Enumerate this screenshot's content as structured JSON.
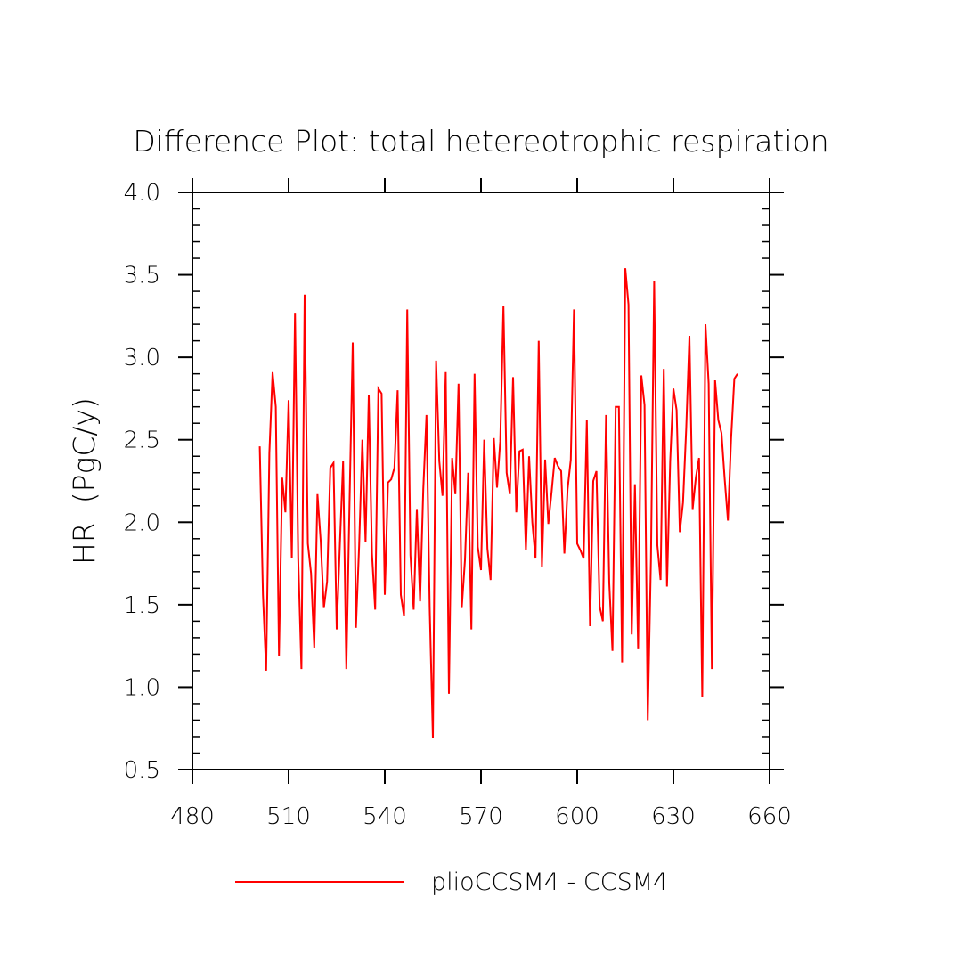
{
  "chart_data": {
    "type": "line",
    "title": "Difference Plot: total hetereotrophic respiration",
    "xlabel": "",
    "ylabel": "HR  (PgC/y)",
    "xlim": [
      480,
      660
    ],
    "ylim": [
      0.5,
      4.0
    ],
    "xticks": [
      480,
      510,
      540,
      570,
      600,
      630,
      660
    ],
    "xtick_labels": [
      "480",
      "510",
      "540",
      "570",
      "600",
      "630",
      "660"
    ],
    "yticks": [
      0.5,
      1.0,
      1.5,
      2.0,
      2.5,
      3.0,
      3.5,
      4.0
    ],
    "ytick_labels": [
      "0.5",
      "1.0",
      "1.5",
      "2.0",
      "2.5",
      "3.0",
      "3.5",
      "4.0"
    ],
    "grid": false,
    "legend_position": "bottom",
    "series": [
      {
        "name": "plioCCSM4 - CCSM4",
        "color": "#ff0000",
        "x": [
          501,
          502,
          503,
          504,
          505,
          506,
          507,
          508,
          509,
          510,
          511,
          512,
          513,
          514,
          515,
          516,
          517,
          518,
          519,
          520,
          521,
          522,
          523,
          524,
          525,
          526,
          527,
          528,
          529,
          530,
          531,
          532,
          533,
          534,
          535,
          536,
          537,
          538,
          539,
          540,
          541,
          542,
          543,
          544,
          545,
          546,
          547,
          548,
          549,
          550,
          551,
          552,
          553,
          554,
          555,
          556,
          557,
          558,
          559,
          560,
          561,
          562,
          563,
          564,
          565,
          566,
          567,
          568,
          569,
          570,
          571,
          572,
          573,
          574,
          575,
          576,
          577,
          578,
          579,
          580,
          581,
          582,
          583,
          584,
          585,
          586,
          587,
          588,
          589,
          590,
          591,
          592,
          593,
          594,
          595,
          596,
          597,
          598,
          599,
          600,
          601,
          602,
          603,
          604,
          605,
          606,
          607,
          608,
          609,
          610,
          611,
          612,
          613,
          614,
          615,
          616,
          617,
          618,
          619,
          620,
          621,
          622,
          623,
          624,
          625,
          626,
          627,
          628,
          629,
          630,
          631,
          632,
          633,
          634,
          635,
          636,
          637,
          638,
          639,
          640,
          641,
          642,
          643,
          644,
          645,
          646,
          647,
          648,
          649,
          650
        ],
        "y": [
          2.46,
          1.56,
          1.1,
          2.42,
          2.91,
          2.7,
          1.19,
          2.27,
          2.06,
          2.74,
          1.78,
          3.27,
          1.78,
          1.11,
          3.38,
          1.87,
          1.69,
          1.24,
          2.17,
          1.89,
          1.48,
          1.64,
          2.33,
          2.36,
          1.35,
          1.87,
          2.37,
          1.11,
          2.12,
          3.09,
          1.36,
          1.86,
          2.5,
          1.88,
          2.77,
          1.81,
          1.47,
          2.81,
          2.78,
          1.56,
          2.24,
          2.26,
          2.33,
          2.8,
          1.56,
          1.43,
          3.29,
          1.8,
          1.47,
          2.08,
          1.52,
          2.2,
          2.65,
          1.48,
          0.69,
          2.98,
          2.37,
          2.16,
          2.91,
          0.96,
          2.39,
          2.17,
          2.84,
          1.48,
          1.77,
          2.3,
          1.35,
          2.9,
          1.85,
          1.71,
          2.5,
          1.84,
          1.65,
          2.51,
          2.21,
          2.49,
          3.31,
          2.3,
          2.17,
          2.88,
          2.06,
          2.43,
          2.44,
          1.83,
          2.4,
          2.0,
          1.78,
          3.1,
          1.73,
          2.38,
          1.99,
          2.18,
          2.39,
          2.34,
          2.31,
          1.81,
          2.2,
          2.38,
          3.29,
          1.87,
          1.83,
          1.78,
          2.62,
          1.37,
          2.25,
          2.31,
          1.49,
          1.4,
          2.65,
          1.63,
          1.22,
          2.7,
          2.7,
          1.15,
          3.54,
          3.32,
          1.32,
          2.23,
          1.23,
          2.89,
          2.71,
          0.8,
          1.78,
          3.46,
          1.86,
          1.65,
          2.93,
          1.61,
          2.37,
          2.81,
          2.68,
          1.94,
          2.12,
          2.57,
          3.13,
          2.08,
          2.27,
          2.39,
          0.94,
          3.2,
          2.84,
          1.11,
          2.86,
          2.62,
          2.54,
          2.26,
          2.01,
          2.51,
          2.87,
          2.9
        ]
      }
    ]
  }
}
